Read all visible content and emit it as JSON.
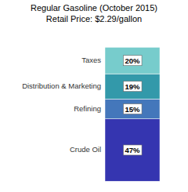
{
  "chart_data": {
    "type": "bar",
    "stacked": true,
    "title": "Regular Gasoline (October 2015)\nRetail Price: $2.29/gallon",
    "categories": [
      "Crude Oil",
      "Refining",
      "Distribution & Marketing",
      "Taxes"
    ],
    "values": [
      47,
      15,
      19,
      20
    ],
    "value_labels": [
      "47%",
      "15%",
      "19%",
      "20%"
    ],
    "data_labels": true,
    "colors": [
      "#3535b0",
      "#4477bb",
      "#3399aa",
      "#77cccc"
    ],
    "ylim": [
      -4,
      113
    ],
    "tick_labels": false,
    "grid": false
  }
}
